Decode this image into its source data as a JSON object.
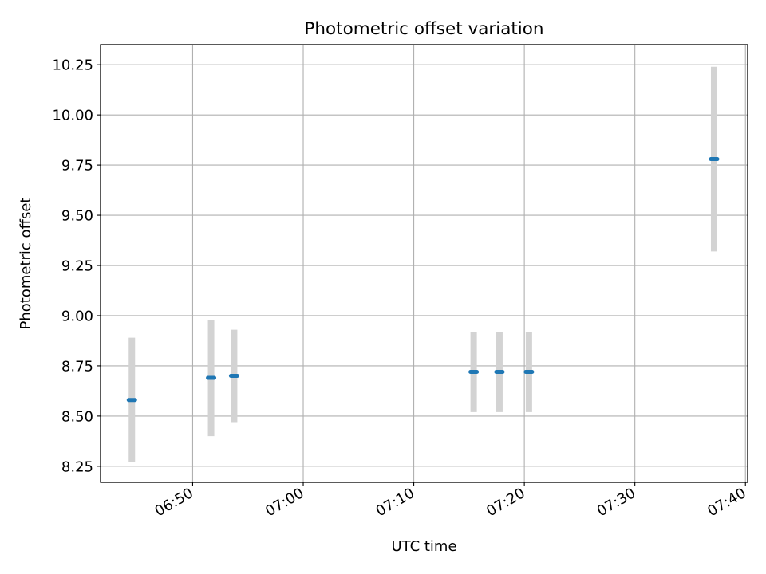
{
  "chart_data": {
    "type": "scatter",
    "title": "Photometric offset variation",
    "xlabel": "UTC time",
    "ylabel": "Photometric offset",
    "x_axis": {
      "type": "time",
      "range": [
        "06:41:40",
        "07:40:12"
      ],
      "ticks": [
        "06:50",
        "07:00",
        "07:10",
        "07:20",
        "07:30",
        "07:40"
      ]
    },
    "y_axis": {
      "range": [
        8.17,
        10.35
      ],
      "ticks": [
        "8.25",
        "8.50",
        "8.75",
        "9.00",
        "9.25",
        "9.50",
        "9.75",
        "10.00",
        "10.25"
      ]
    },
    "grid": true,
    "legend": "none",
    "series": [
      {
        "points": [
          {
            "time": "06:44:30",
            "y": 8.58,
            "err": 0.31
          },
          {
            "time": "06:51:40",
            "y": 8.69,
            "err": 0.29
          },
          {
            "time": "06:53:45",
            "y": 8.7,
            "err": 0.23
          },
          {
            "time": "07:15:25",
            "y": 8.72,
            "err": 0.2
          },
          {
            "time": "07:17:45",
            "y": 8.72,
            "err": 0.2
          },
          {
            "time": "07:20:25",
            "y": 8.72,
            "err": 0.2
          },
          {
            "time": "07:37:10",
            "y": 9.78,
            "err": 0.46
          }
        ]
      }
    ],
    "colors": {
      "marker": "#1f77b4",
      "errorbar": "#d3d3d3",
      "grid": "#b0b0b0",
      "axes": "#000000"
    }
  }
}
